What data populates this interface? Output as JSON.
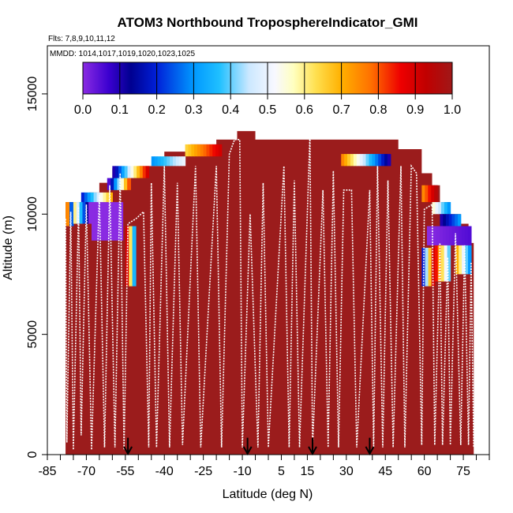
{
  "chart_data": {
    "type": "heatmap",
    "title": "ATOM3 Northbound TroposphereIndicator_GMI",
    "subtitle_flights": "Flts: 7,8,9,10,11,12",
    "subtitle_mmdd": "MMDD: 1014,1017,1019,1020,1023,1025",
    "xlabel": "Latitude (deg N)",
    "ylabel": "Altitude (m)",
    "xlim": [
      -85,
      85
    ],
    "ylim": [
      0,
      17000
    ],
    "x_ticks": [
      "-85",
      "-70",
      "-55",
      "-40",
      "-25",
      "-10",
      "5",
      "15",
      "30",
      "45",
      "60",
      "75"
    ],
    "x_tick_values": [
      -85,
      -70,
      -55,
      -40,
      -25,
      -10,
      5,
      15,
      30,
      45,
      60,
      75
    ],
    "y_ticks": [
      "0",
      "5000",
      "10000",
      "15000"
    ],
    "y_tick_values": [
      0,
      5000,
      10000,
      15000
    ],
    "colorbar_ticks": [
      "0.0",
      "0.1",
      "0.2",
      "0.3",
      "0.4",
      "0.5",
      "0.6",
      "0.7",
      "0.8",
      "0.9",
      "1.0"
    ],
    "colorbar_range": [
      0,
      1
    ],
    "arrow_latitudes": [
      -54,
      -8,
      17,
      39
    ],
    "fill_color": "#9b1c1c",
    "curtain_top": [
      [
        -78,
        10500
      ],
      [
        -73,
        10500
      ],
      [
        -69,
        10900
      ],
      [
        -65,
        11300
      ],
      [
        -60,
        11900
      ],
      [
        -50,
        12000
      ],
      [
        -40,
        12600
      ],
      [
        -30,
        12900
      ],
      [
        -20,
        13100
      ],
      [
        -12,
        13450
      ],
      [
        -5,
        13100
      ],
      [
        10,
        13100
      ],
      [
        30,
        13100
      ],
      [
        47,
        13100
      ],
      [
        50,
        12700
      ],
      [
        55,
        12700
      ],
      [
        59,
        11700
      ],
      [
        63,
        11200
      ],
      [
        66,
        10500
      ],
      [
        70,
        10000
      ],
      [
        74,
        9600
      ],
      [
        77,
        8800
      ],
      [
        79,
        7100
      ]
    ],
    "non_tropo_regions": [
      {
        "x0": -78,
        "x1": -75,
        "y0": 9500,
        "y1": 10500,
        "v": [
          0.75,
          0.25
        ]
      },
      {
        "x0": -75,
        "x1": -68,
        "y0": 9600,
        "y1": 10500,
        "v": [
          0.6,
          0.0
        ]
      },
      {
        "x0": -68,
        "x1": -56,
        "y0": 8900,
        "y1": 10500,
        "v": [
          0.0,
          0.0
        ]
      },
      {
        "x0": -55,
        "x1": -51,
        "y0": 7000,
        "y1": 9500,
        "v": [
          0.9,
          0.35
        ]
      },
      {
        "x0": -72,
        "x1": -60,
        "y0": 10500,
        "y1": 10900,
        "v": [
          0.2,
          0.7
        ]
      },
      {
        "x0": -62,
        "x1": -53,
        "y0": 11000,
        "y1": 11500,
        "v": [
          0.05,
          0.8
        ]
      },
      {
        "x0": -60,
        "x1": -46,
        "y0": 11500,
        "y1": 12000,
        "v": [
          0.1,
          0.9
        ]
      },
      {
        "x0": -45,
        "x1": -32,
        "y0": 12000,
        "y1": 12400,
        "v": [
          0.3,
          0.5
        ]
      },
      {
        "x0": -32,
        "x1": -18,
        "y0": 12400,
        "y1": 12900,
        "v": [
          0.65,
          0.9
        ]
      },
      {
        "x0": 28,
        "x1": 47,
        "y0": 12000,
        "y1": 12500,
        "v": [
          0.75,
          0.1
        ]
      },
      {
        "x0": 59,
        "x1": 65,
        "y0": 10500,
        "y1": 11200,
        "v": [
          0.75,
          0.95
        ]
      },
      {
        "x0": 63,
        "x1": 70,
        "y0": 10000,
        "y1": 10500,
        "v": [
          0.55,
          0.3
        ]
      },
      {
        "x0": 66,
        "x1": 74,
        "y0": 9500,
        "y1": 10000,
        "v": [
          0.1,
          0.3
        ]
      },
      {
        "x0": 61,
        "x1": 78,
        "y0": 8700,
        "y1": 9500,
        "v": [
          0.0,
          0.05
        ]
      },
      {
        "x0": 59,
        "x1": 64,
        "y0": 7000,
        "y1": 8600,
        "v": [
          0.2,
          0.9
        ]
      },
      {
        "x0": 64,
        "x1": 70,
        "y0": 7200,
        "y1": 8700,
        "v": [
          0.85,
          0.4
        ]
      },
      {
        "x0": 72,
        "x1": 78,
        "y0": 7500,
        "y1": 8700,
        "v": [
          0.7,
          0.3
        ]
      }
    ],
    "flight_profile": [
      [
        -78,
        9800
      ],
      [
        -77.5,
        500
      ],
      [
        -76,
        10100
      ],
      [
        -75,
        200
      ],
      [
        -73,
        10300
      ],
      [
        -72,
        800
      ],
      [
        -70,
        10400
      ],
      [
        -68,
        200
      ],
      [
        -65,
        10800
      ],
      [
        -63,
        300
      ],
      [
        -61,
        11200
      ],
      [
        -59,
        300
      ],
      [
        -57,
        11700
      ],
      [
        -55.5,
        200
      ],
      [
        -54,
        9600
      ],
      [
        -51,
        9800
      ],
      [
        -48,
        10100
      ],
      [
        -46,
        300
      ],
      [
        -45,
        11300
      ],
      [
        -43,
        300
      ],
      [
        -40,
        12000
      ],
      [
        -38,
        300
      ],
      [
        -35,
        11300
      ],
      [
        -33,
        400
      ],
      [
        -28,
        12000
      ],
      [
        -26,
        300
      ],
      [
        -20,
        12000
      ],
      [
        -18,
        300
      ],
      [
        -15,
        12500
      ],
      [
        -13,
        13100
      ],
      [
        -11,
        13100
      ],
      [
        -10,
        300
      ],
      [
        -7,
        10000
      ],
      [
        -4,
        300
      ],
      [
        -2,
        11300
      ],
      [
        0,
        300
      ],
      [
        6,
        12000
      ],
      [
        8,
        300
      ],
      [
        10,
        11400
      ],
      [
        12,
        300
      ],
      [
        16,
        13300
      ],
      [
        17,
        300
      ],
      [
        21,
        11000
      ],
      [
        23,
        300
      ],
      [
        25,
        11800
      ],
      [
        27,
        300
      ],
      [
        29,
        11000
      ],
      [
        32,
        11000
      ],
      [
        34,
        300
      ],
      [
        39,
        11000
      ],
      [
        40.5,
        300
      ],
      [
        42,
        12000
      ],
      [
        44,
        300
      ],
      [
        46,
        11400
      ],
      [
        48,
        300
      ],
      [
        51,
        12000
      ],
      [
        52.5,
        300
      ],
      [
        55,
        12000
      ],
      [
        57,
        11700
      ],
      [
        59,
        400
      ],
      [
        60,
        10200
      ],
      [
        63,
        10400
      ],
      [
        64,
        400
      ],
      [
        66,
        8800
      ],
      [
        67,
        400
      ],
      [
        69,
        8200
      ],
      [
        70,
        400
      ],
      [
        72,
        9200
      ],
      [
        74,
        400
      ],
      [
        75.5,
        8700
      ],
      [
        77,
        400
      ],
      [
        78,
        8000
      ],
      [
        79,
        300
      ]
    ]
  }
}
